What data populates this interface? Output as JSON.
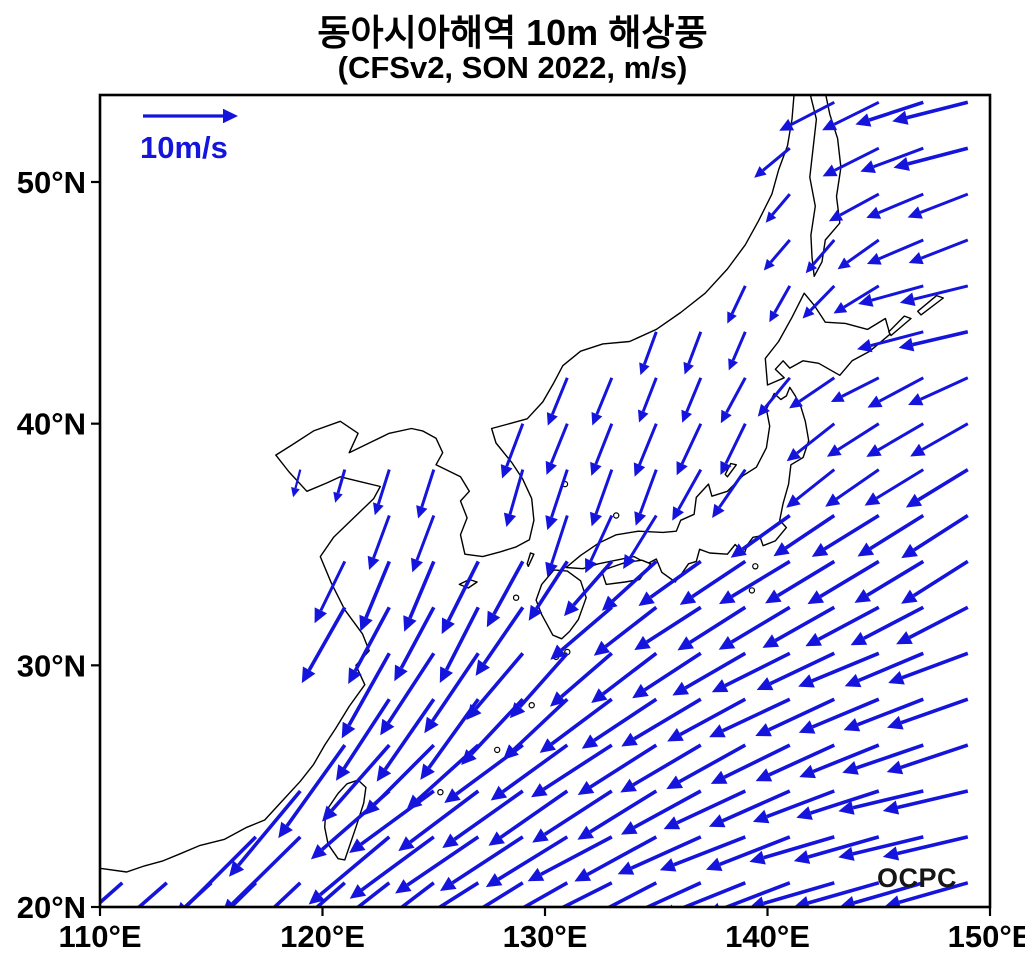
{
  "figure": {
    "title": "동아시아해역 10m 해상풍",
    "subtitle": "(CFSv2, SON 2022, m/s)",
    "watermark": "OCPC"
  },
  "legend": {
    "label": "10m/s",
    "speed_ms": 10
  },
  "colors": {
    "arrow": "#1414dc",
    "coast": "#000000",
    "frame": "#000000",
    "tick_text": "#000000",
    "legend_text": "#1414dc",
    "watermark": "#161616"
  },
  "axes": {
    "x": {
      "min": 110,
      "max": 150,
      "ticks": [
        {
          "v": 110,
          "label": "110°E"
        },
        {
          "v": 120,
          "label": "120°E"
        },
        {
          "v": 130,
          "label": "130°E"
        },
        {
          "v": 140,
          "label": "140°E"
        },
        {
          "v": 150,
          "label": "150°E"
        }
      ]
    },
    "y": {
      "min": 20,
      "max": 53.6,
      "ticks": [
        {
          "v": 20,
          "label": "20°N"
        },
        {
          "v": 30,
          "label": "30°N"
        },
        {
          "v": 40,
          "label": "40°N"
        },
        {
          "v": 50,
          "label": "50°N"
        }
      ]
    }
  },
  "chart_data": {
    "type": "quiver",
    "title": "동아시아해역 10m 해상풍",
    "subtitle": "(CFSv2, SON 2022, m/s)",
    "dataset": "CFSv2",
    "season": "SON 2022",
    "units": "m/s",
    "lon_range": [
      110,
      150
    ],
    "lat_range": [
      20,
      53.6
    ],
    "reference_vector_ms": 10,
    "grid": {
      "lon_start": 111,
      "lon_step": 2,
      "lon_end": 149,
      "lat_start": 21,
      "lat_step": 1.9,
      "lat_end": 53.3
    },
    "description": "10 m ocean-surface wind vectors over East Asian seas; northeasterly monsoon flow over the East China Sea and subtropical western Pacific, northerlies over the Yellow Sea and Sea of Japan, westerlies near the Sea of Okhotsk.",
    "vector_format": [
      "lon",
      "lat",
      "u_ms",
      "v_ms"
    ],
    "wind_vectors": [
      [
        149,
        52.5,
        -8,
        -2
      ],
      [
        144,
        52,
        -6,
        -3
      ],
      [
        147,
        49,
        -6,
        -2.5
      ],
      [
        143,
        47.5,
        -3,
        -3.5
      ],
      [
        141,
        49,
        -2.5,
        -3
      ],
      [
        148,
        44.5,
        -7.5,
        -1.5
      ],
      [
        145,
        42.5,
        -5,
        -2.5
      ],
      [
        140,
        44.5,
        -1.5,
        -4
      ],
      [
        136,
        43,
        -1.5,
        -4.5
      ],
      [
        132,
        41.5,
        -2,
        -5
      ],
      [
        138,
        40,
        -2.5,
        -5.5
      ],
      [
        134,
        38.5,
        -2,
        -6
      ],
      [
        131,
        37,
        -2,
        -6.5
      ],
      [
        128,
        37.5,
        -1.5,
        -6
      ],
      [
        124,
        37.5,
        -1.5,
        -5
      ],
      [
        119.6,
        39.3,
        -0.5,
        -2.5
      ],
      [
        121,
        38.5,
        -1,
        -3.5
      ],
      [
        124,
        34.5,
        -3,
        -7.5
      ],
      [
        127,
        33,
        -4,
        -8
      ],
      [
        122.5,
        30.5,
        -5,
        -9
      ],
      [
        126,
        29.5,
        -6,
        -9
      ],
      [
        130,
        30.5,
        -6,
        -7
      ],
      [
        133,
        31.8,
        -6.5,
        -5.5
      ],
      [
        137,
        32.5,
        -7,
        -4.5
      ],
      [
        141,
        33.5,
        -7.5,
        -4.5
      ],
      [
        145,
        34.5,
        -7.5,
        -4.5
      ],
      [
        149,
        35.5,
        -7,
        -4.5
      ],
      [
        143,
        39,
        -5,
        -4
      ],
      [
        147,
        40.5,
        -6,
        -3.5
      ],
      [
        120,
        26.5,
        -7,
        -10
      ],
      [
        117,
        23,
        -8.5,
        -8.5
      ],
      [
        113,
        21.5,
        -8,
        -7
      ],
      [
        121.5,
        22.5,
        -8.5,
        -7.5
      ],
      [
        125,
        24,
        -9,
        -6.5
      ],
      [
        129,
        25.5,
        -8.5,
        -6
      ],
      [
        133,
        26.5,
        -8.5,
        -5.5
      ],
      [
        137,
        27.5,
        -8.5,
        -5
      ],
      [
        141,
        29,
        -8.5,
        -4
      ],
      [
        145,
        30,
        -8.5,
        -3.5
      ],
      [
        149,
        29,
        -8.5,
        -3
      ],
      [
        148,
        24,
        -9,
        -2
      ],
      [
        144,
        22,
        -9,
        -2.5
      ],
      [
        139,
        22.5,
        -9,
        -3.5
      ],
      [
        133,
        21.5,
        -9,
        -4.5
      ],
      [
        128,
        21.5,
        -9,
        -5.5
      ],
      [
        124,
        21,
        -8.5,
        -6.5
      ]
    ]
  },
  "geo": {
    "coastlines": {
      "mainland_asia": [
        [
          110,
          21.6
        ],
        [
          111.2,
          21.45
        ],
        [
          112,
          21.7
        ],
        [
          112.8,
          21.9
        ],
        [
          113.6,
          22.2
        ],
        [
          114.5,
          22.55
        ],
        [
          115.6,
          22.8
        ],
        [
          116.6,
          23.3
        ],
        [
          117.4,
          23.6
        ],
        [
          118.1,
          24.3
        ],
        [
          119,
          25.2
        ],
        [
          119.6,
          25.9
        ],
        [
          120.1,
          26.7
        ],
        [
          120.6,
          27.4
        ],
        [
          121.2,
          28.3
        ],
        [
          121.9,
          29.2
        ],
        [
          121.5,
          30
        ],
        [
          122.1,
          30.6
        ],
        [
          121.8,
          31.3
        ],
        [
          121,
          32.3
        ],
        [
          120.4,
          33.4
        ],
        [
          119.9,
          34.5
        ],
        [
          120.5,
          35.3
        ],
        [
          121.4,
          36.1
        ],
        [
          122.3,
          36.9
        ],
        [
          122.6,
          37.4
        ],
        [
          121.7,
          37.6
        ],
        [
          120.8,
          37.8
        ],
        [
          120.2,
          37.55
        ],
        [
          119.3,
          37.2
        ],
        [
          118.5,
          38
        ],
        [
          117.9,
          38.7
        ],
        [
          118.6,
          39.1
        ],
        [
          119.6,
          39.7
        ],
        [
          120.8,
          40.1
        ],
        [
          121.6,
          39.6
        ],
        [
          121.2,
          38.8
        ],
        [
          122.1,
          39.2
        ],
        [
          123,
          39.6
        ],
        [
          124,
          39.8
        ],
        [
          124.5,
          39.7
        ],
        [
          125.1,
          39.4
        ],
        [
          125.4,
          38.8
        ],
        [
          125.1,
          38.3
        ],
        [
          126.2,
          37.8
        ],
        [
          126.6,
          37.2
        ],
        [
          126.2,
          36.8
        ],
        [
          126.5,
          36.1
        ],
        [
          126.2,
          35.4
        ],
        [
          126.4,
          34.6
        ],
        [
          127.2,
          34.5
        ],
        [
          128,
          34.7
        ],
        [
          128.7,
          34.9
        ],
        [
          129.3,
          35.2
        ],
        [
          129.5,
          36
        ],
        [
          129.4,
          36.9
        ],
        [
          129,
          37.7
        ],
        [
          128.5,
          38.4
        ],
        [
          127.8,
          39.2
        ],
        [
          127.6,
          39.8
        ],
        [
          128.4,
          40
        ],
        [
          129.2,
          40.2
        ],
        [
          129.9,
          40.9
        ],
        [
          130.4,
          41.7
        ],
        [
          130.8,
          42.4
        ],
        [
          131.6,
          43
        ],
        [
          132.6,
          43.3
        ],
        [
          133.8,
          43.4
        ],
        [
          135,
          43.9
        ],
        [
          136.1,
          44.6
        ],
        [
          137.2,
          45.4
        ],
        [
          138.2,
          46.4
        ],
        [
          139,
          47.4
        ],
        [
          139.6,
          48.4
        ],
        [
          140.2,
          49.5
        ],
        [
          140.5,
          50.5
        ],
        [
          140.9,
          51.5
        ],
        [
          141.1,
          52.6
        ],
        [
          141.2,
          53.7
        ],
        [
          109.8,
          53.7
        ],
        [
          109.8,
          21.6
        ]
      ],
      "sakhalin": [
        [
          141.9,
          53.7
        ],
        [
          142.2,
          52.6
        ],
        [
          142.05,
          51.4
        ],
        [
          141.9,
          50.2
        ],
        [
          142.15,
          49
        ],
        [
          141.95,
          47.8
        ],
        [
          142,
          46.9
        ],
        [
          142.1,
          46.1
        ],
        [
          142.45,
          46.7
        ],
        [
          142.6,
          47.6
        ],
        [
          143.25,
          48.3
        ],
        [
          143.1,
          49.4
        ],
        [
          143.3,
          50.6
        ],
        [
          143.15,
          51.8
        ],
        [
          142.8,
          52.8
        ],
        [
          142.6,
          53.7
        ]
      ],
      "hokkaido": [
        [
          140,
          41.6
        ],
        [
          139.9,
          42.7
        ],
        [
          140.5,
          43.4
        ],
        [
          141.1,
          44.4
        ],
        [
          141.65,
          45.4
        ],
        [
          142.1,
          44.9
        ],
        [
          142.6,
          44.2
        ],
        [
          143.5,
          44.15
        ],
        [
          144.5,
          43.9
        ],
        [
          145.3,
          44.35
        ],
        [
          145.5,
          43.7
        ],
        [
          144.6,
          43
        ],
        [
          143.8,
          42.6
        ],
        [
          143.25,
          42
        ],
        [
          142.3,
          42.5
        ],
        [
          141.6,
          42.6
        ],
        [
          141,
          42.3
        ],
        [
          140.7,
          42.6
        ],
        [
          140.35,
          42.25
        ],
        [
          140.75,
          41.9
        ],
        [
          140,
          41.6
        ]
      ],
      "honshu": [
        [
          130.95,
          34.05
        ],
        [
          131.6,
          34.55
        ],
        [
          132.4,
          35.05
        ],
        [
          133.2,
          35.4
        ],
        [
          134.2,
          35.55
        ],
        [
          135.3,
          35.5
        ],
        [
          135.9,
          35.55
        ],
        [
          136.1,
          36
        ],
        [
          136.7,
          36.25
        ],
        [
          136.8,
          36.95
        ],
        [
          137.35,
          37.5
        ],
        [
          137.5,
          37
        ],
        [
          138.2,
          37.2
        ],
        [
          138.9,
          37.85
        ],
        [
          139.5,
          38.2
        ],
        [
          139.95,
          39
        ],
        [
          140.1,
          39.9
        ],
        [
          139.95,
          40.6
        ],
        [
          140.3,
          41.25
        ],
        [
          140.6,
          41
        ],
        [
          140.85,
          41.15
        ],
        [
          141,
          41.5
        ],
        [
          141.25,
          41.15
        ],
        [
          141.5,
          40.7
        ],
        [
          141.7,
          40.1
        ],
        [
          141.85,
          39.3
        ],
        [
          141.6,
          38.6
        ],
        [
          141.05,
          38.3
        ],
        [
          140.95,
          37.5
        ],
        [
          140.7,
          36.7
        ],
        [
          140.55,
          36
        ],
        [
          140.85,
          35.7
        ],
        [
          140.35,
          35.15
        ],
        [
          139.8,
          34.95
        ],
        [
          139.65,
          35.35
        ],
        [
          139.35,
          35.3
        ],
        [
          139.1,
          35
        ],
        [
          138.95,
          34.6
        ],
        [
          138.55,
          35
        ],
        [
          138.2,
          34.6
        ],
        [
          137.4,
          34.65
        ],
        [
          136.95,
          34.8
        ],
        [
          136.8,
          34.3
        ],
        [
          136.45,
          34.2
        ],
        [
          136.15,
          33.8
        ],
        [
          135.85,
          33.45
        ],
        [
          135.25,
          33.85
        ],
        [
          135,
          34.4
        ],
        [
          134.6,
          34.2
        ],
        [
          134,
          34.5
        ],
        [
          133.2,
          34.35
        ],
        [
          132.4,
          34.2
        ],
        [
          131.7,
          34
        ],
        [
          130.95,
          34.05
        ]
      ],
      "shikoku": [
        [
          132.75,
          33.35
        ],
        [
          133.6,
          33.45
        ],
        [
          134.25,
          33.55
        ],
        [
          134.75,
          34.2
        ],
        [
          134.35,
          34.35
        ],
        [
          133.6,
          34.25
        ],
        [
          132.95,
          34.05
        ],
        [
          132.55,
          33.9
        ],
        [
          132.75,
          33.35
        ]
      ],
      "kyushu": [
        [
          130.35,
          31.25
        ],
        [
          130.75,
          31.1
        ],
        [
          131.1,
          31.4
        ],
        [
          131.5,
          31.9
        ],
        [
          131.85,
          32.8
        ],
        [
          131.6,
          33.5
        ],
        [
          131,
          33.9
        ],
        [
          130.4,
          33.95
        ],
        [
          129.85,
          33.35
        ],
        [
          129.6,
          32.7
        ],
        [
          129.85,
          32.1
        ],
        [
          130.15,
          31.6
        ],
        [
          130.35,
          31.25
        ]
      ],
      "taiwan": [
        [
          121.6,
          25.25
        ],
        [
          121.95,
          24.95
        ],
        [
          121.85,
          24.3
        ],
        [
          121.5,
          23.3
        ],
        [
          121,
          21.95
        ],
        [
          120.7,
          22
        ],
        [
          120.25,
          22.6
        ],
        [
          120.1,
          23.3
        ],
        [
          120.15,
          23.95
        ],
        [
          120.7,
          24.7
        ],
        [
          121.1,
          25.1
        ],
        [
          121.6,
          25.25
        ]
      ],
      "jeju": [
        [
          126.15,
          33.35
        ],
        [
          126.6,
          33.55
        ],
        [
          126.95,
          33.45
        ],
        [
          126.55,
          33.2
        ],
        [
          126.15,
          33.35
        ]
      ],
      "tsushima": [
        [
          129.25,
          34.1
        ],
        [
          129.5,
          34.6
        ],
        [
          129.35,
          34.65
        ],
        [
          129.2,
          34.2
        ],
        [
          129.25,
          34.1
        ]
      ],
      "sado": [
        [
          138.2,
          37.8
        ],
        [
          138.6,
          38.3
        ],
        [
          138.35,
          38.35
        ],
        [
          138.1,
          37.9
        ],
        [
          138.2,
          37.8
        ]
      ],
      "kunashiri": [
        [
          145.55,
          43.65
        ],
        [
          146.45,
          44.35
        ],
        [
          146.15,
          44.45
        ],
        [
          145.45,
          43.8
        ],
        [
          145.55,
          43.65
        ]
      ],
      "iturup": [
        [
          146.9,
          44.5
        ],
        [
          147.9,
          45.2
        ],
        [
          147.6,
          45.3
        ],
        [
          146.75,
          44.65
        ],
        [
          146.9,
          44.5
        ]
      ]
    },
    "island_dots": [
      [
        133.2,
        36.2
      ],
      [
        130.9,
        37.5
      ],
      [
        139.45,
        34.1
      ],
      [
        139.3,
        33.1
      ],
      [
        130.5,
        30.35
      ],
      [
        131,
        30.55
      ],
      [
        129.4,
        28.35
      ],
      [
        127.85,
        26.5
      ],
      [
        128.7,
        32.8
      ],
      [
        125.3,
        24.75
      ]
    ]
  }
}
